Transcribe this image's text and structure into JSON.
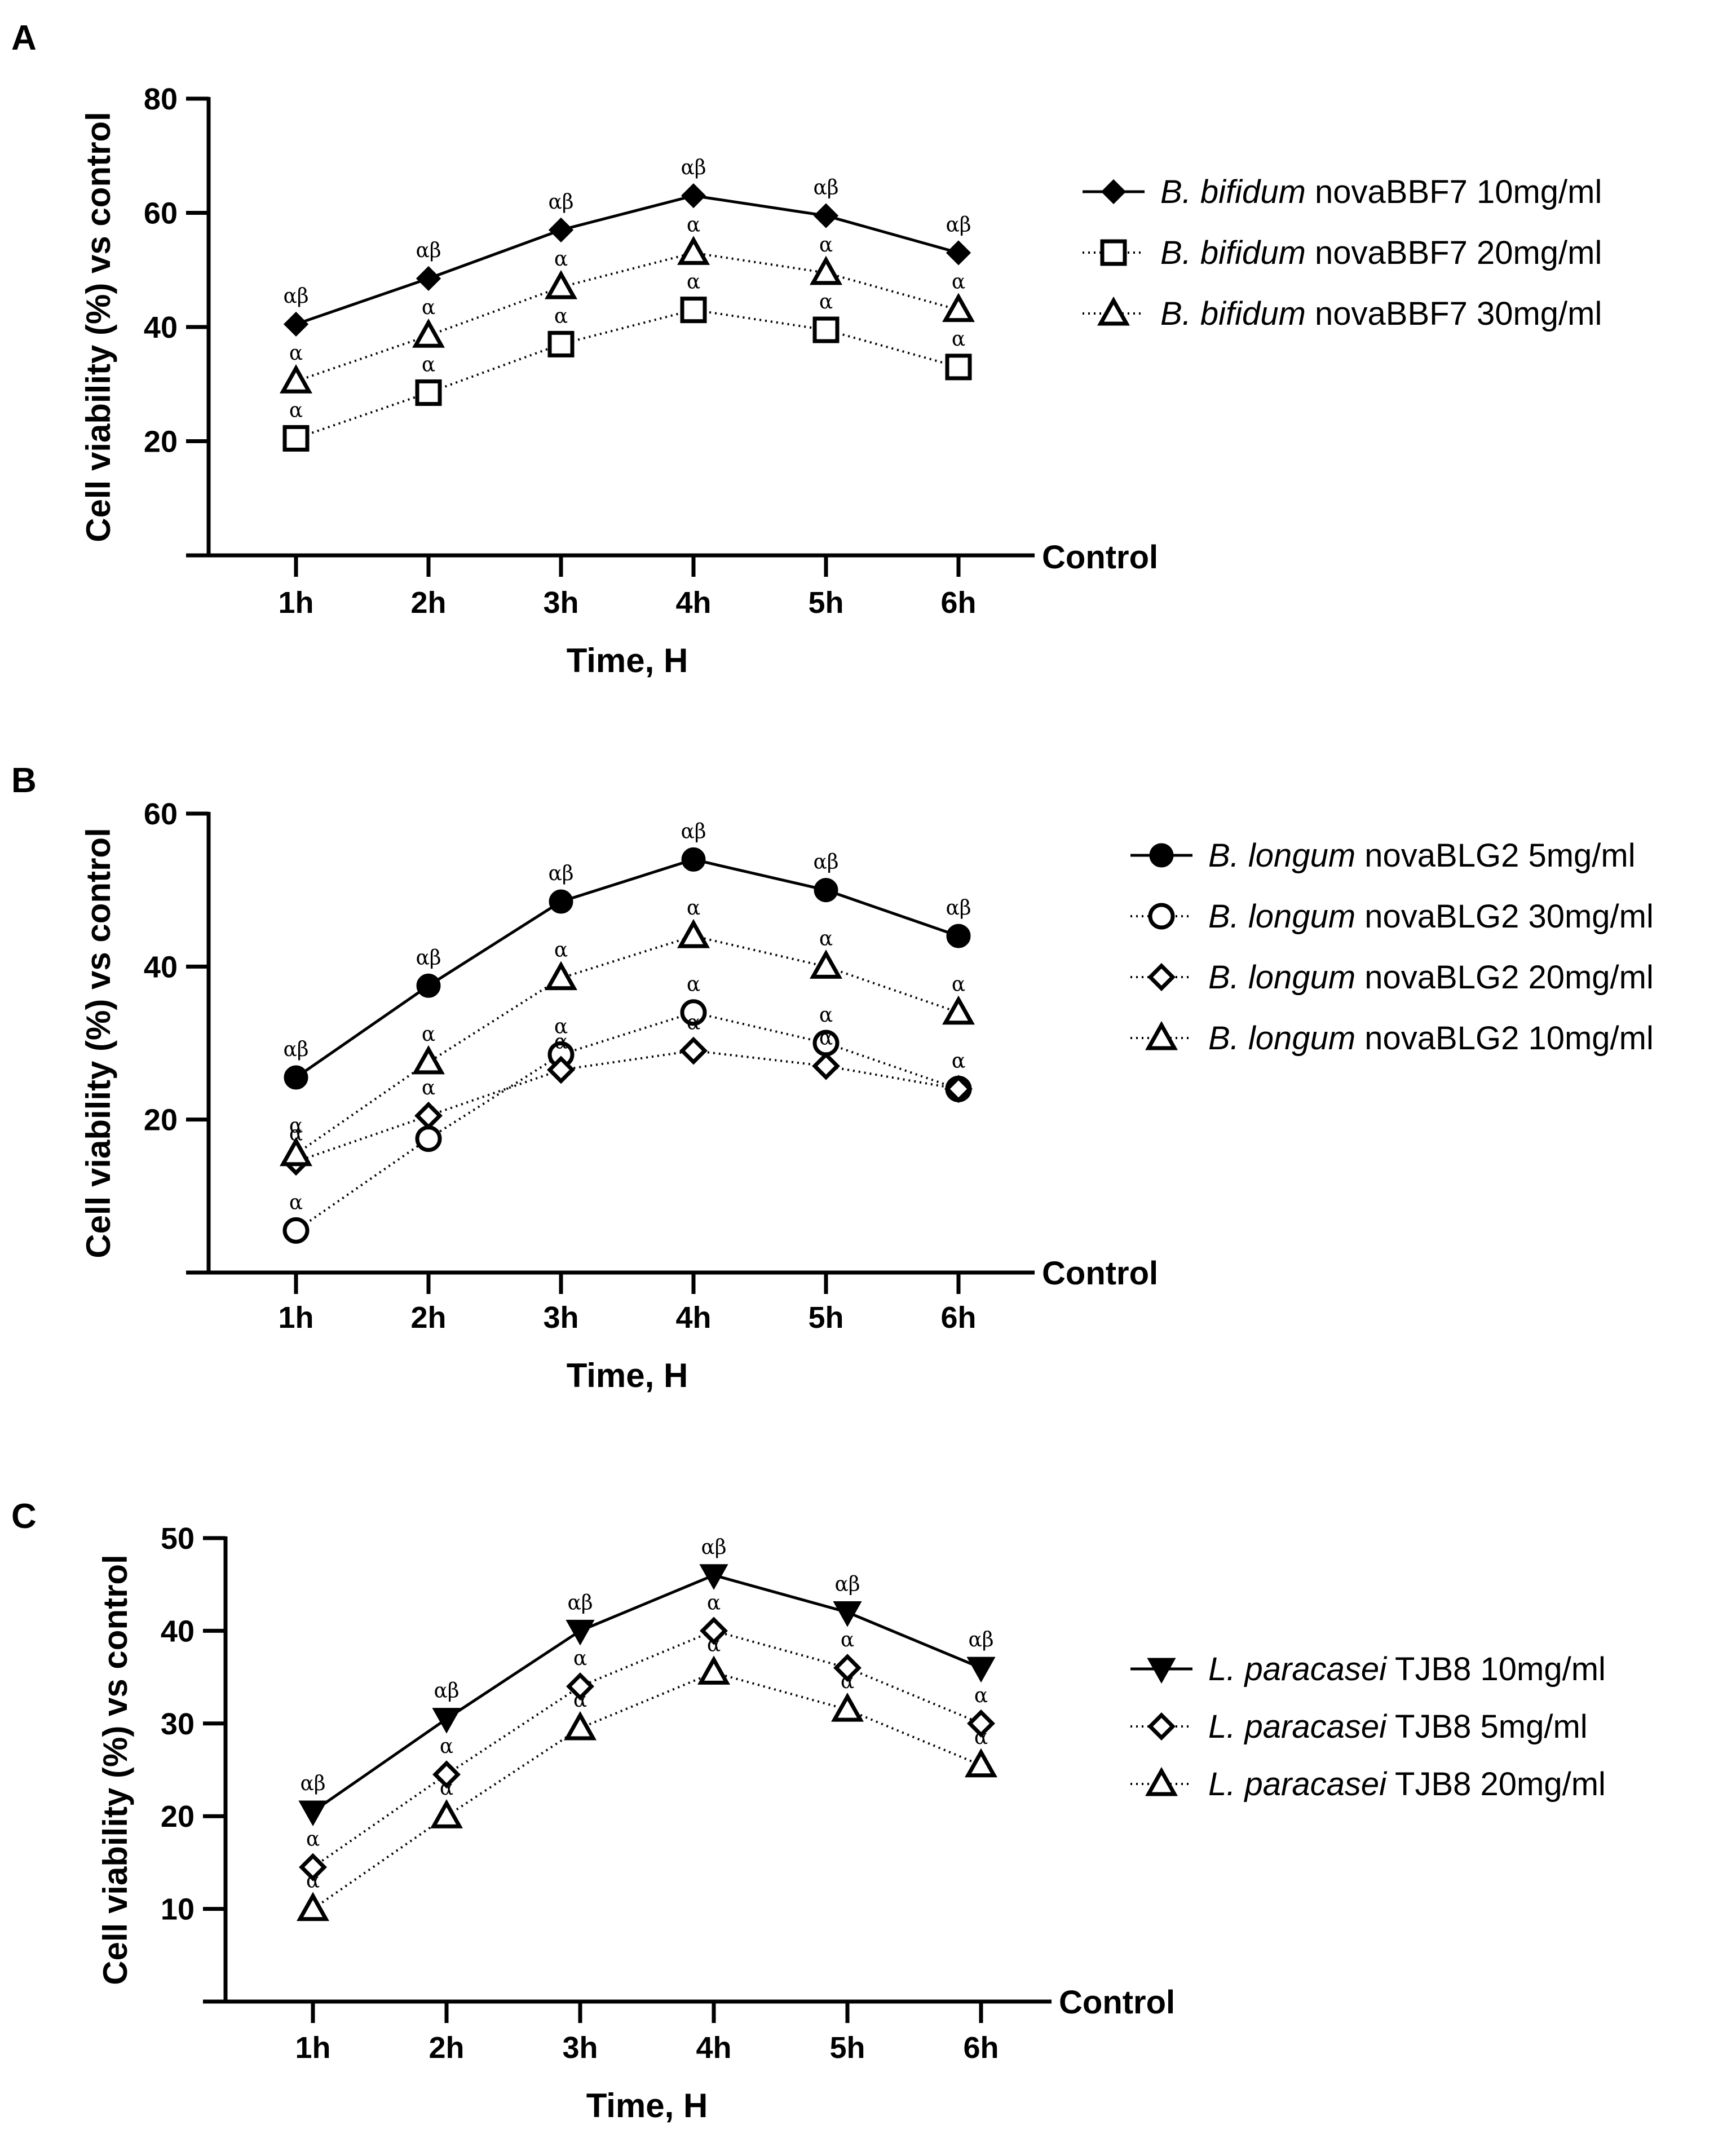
{
  "chart_data": [
    {
      "panel": "A",
      "type": "line",
      "xlabel": "Time, H",
      "ylabel": "Cell viability (%) vs control",
      "baseline_label": "Control",
      "categories": [
        "1h",
        "2h",
        "3h",
        "4h",
        "5h",
        "6h"
      ],
      "ylim": [
        0,
        80
      ],
      "yticks": [
        20,
        40,
        60,
        80
      ],
      "legend_position": "right",
      "series": [
        {
          "name_italic": "B. bifidum",
          "name_rest": " novaBBF7 10mg/ml",
          "marker": "diamond-filled",
          "line": "solid",
          "values": [
            40.5,
            48.5,
            57,
            63,
            59.5,
            53
          ],
          "annotations": [
            "αβ",
            "αβ",
            "αβ",
            "αβ",
            "αβ",
            "αβ"
          ]
        },
        {
          "name_italic": "B. bifidum",
          "name_rest": " novaBBF7 20mg/ml",
          "marker": "square-open",
          "line": "dotted",
          "values": [
            20.5,
            28.5,
            37,
            43,
            39.5,
            33
          ],
          "annotations": [
            "α",
            "α",
            "α",
            "α",
            "α",
            "α"
          ]
        },
        {
          "name_italic": "B. bifidum",
          "name_rest": " novaBBF7 30mg/ml",
          "marker": "triangle-open",
          "line": "dotted",
          "values": [
            30.5,
            38.5,
            47,
            53,
            49.5,
            43
          ],
          "annotations": [
            "α",
            "α",
            "α",
            "α",
            "α",
            "α"
          ]
        }
      ]
    },
    {
      "panel": "B",
      "type": "line",
      "xlabel": "Time, H",
      "ylabel": "Cell viability (%) vs control",
      "baseline_label": "Control",
      "categories": [
        "1h",
        "2h",
        "3h",
        "4h",
        "5h",
        "6h"
      ],
      "ylim": [
        0,
        60
      ],
      "yticks": [
        20,
        40,
        60
      ],
      "legend_position": "right",
      "series": [
        {
          "name_italic": "B. longum",
          "name_rest": " novaBLG2 5mg/ml",
          "marker": "circle-filled",
          "line": "solid",
          "values": [
            25.5,
            37.5,
            48.5,
            54,
            50,
            44
          ],
          "annotations": [
            "αβ",
            "αβ",
            "αβ",
            "αβ",
            "αβ",
            "αβ"
          ]
        },
        {
          "name_italic": "B. longum",
          "name_rest": " novaBLG2 30mg/ml",
          "marker": "circle-open",
          "line": "dotted",
          "values": [
            5.5,
            17.5,
            28.5,
            34,
            30,
            24
          ],
          "annotations": [
            "α",
            "α",
            "α",
            "α",
            "α",
            "α"
          ]
        },
        {
          "name_italic": "B. longum",
          "name_rest": " novaBLG2 20mg/ml",
          "marker": "diamond-open",
          "line": "dotted",
          "values": [
            14.5,
            20.5,
            26.5,
            29,
            27,
            24
          ],
          "annotations": [
            "α",
            "α",
            "α",
            "α",
            "α",
            "α"
          ]
        },
        {
          "name_italic": "B. longum",
          "name_rest": " novaBLG2 10mg/ml",
          "marker": "triangle-open",
          "line": "dotted",
          "values": [
            15.5,
            27.5,
            38.5,
            44,
            40,
            34
          ],
          "annotations": [
            "α",
            "α",
            "α",
            "α",
            "α",
            "α"
          ]
        }
      ]
    },
    {
      "panel": "C",
      "type": "line",
      "xlabel": "Time, H",
      "ylabel": "Cell viability (%) vs control",
      "baseline_label": "Control",
      "categories": [
        "1h",
        "2h",
        "3h",
        "4h",
        "5h",
        "6h"
      ],
      "ylim": [
        0,
        50
      ],
      "yticks": [
        10,
        20,
        30,
        40,
        50
      ],
      "legend_position": "right",
      "series": [
        {
          "name_italic": "L. paracasei",
          "name_rest": " TJB8 10mg/ml",
          "marker": "triangle-down-filled",
          "line": "solid",
          "values": [
            20.5,
            30.5,
            40,
            46,
            42,
            36
          ],
          "annotations": [
            "αβ",
            "αβ",
            "αβ",
            "αβ",
            "αβ",
            "αβ"
          ]
        },
        {
          "name_italic": "L. paracasei",
          "name_rest": " TJB8 5mg/ml",
          "marker": "diamond-open",
          "line": "dotted",
          "values": [
            14.5,
            24.5,
            34,
            40,
            36,
            30
          ],
          "annotations": [
            "α",
            "α",
            "α",
            "α",
            "α",
            "α"
          ]
        },
        {
          "name_italic": "L. paracasei",
          "name_rest": " TJB8 20mg/ml",
          "marker": "triangle-open",
          "line": "dotted",
          "values": [
            10,
            20,
            29.5,
            35.5,
            31.5,
            25.5
          ],
          "annotations": [
            "α",
            "α",
            "α",
            "α",
            "α",
            "α"
          ]
        }
      ]
    }
  ]
}
